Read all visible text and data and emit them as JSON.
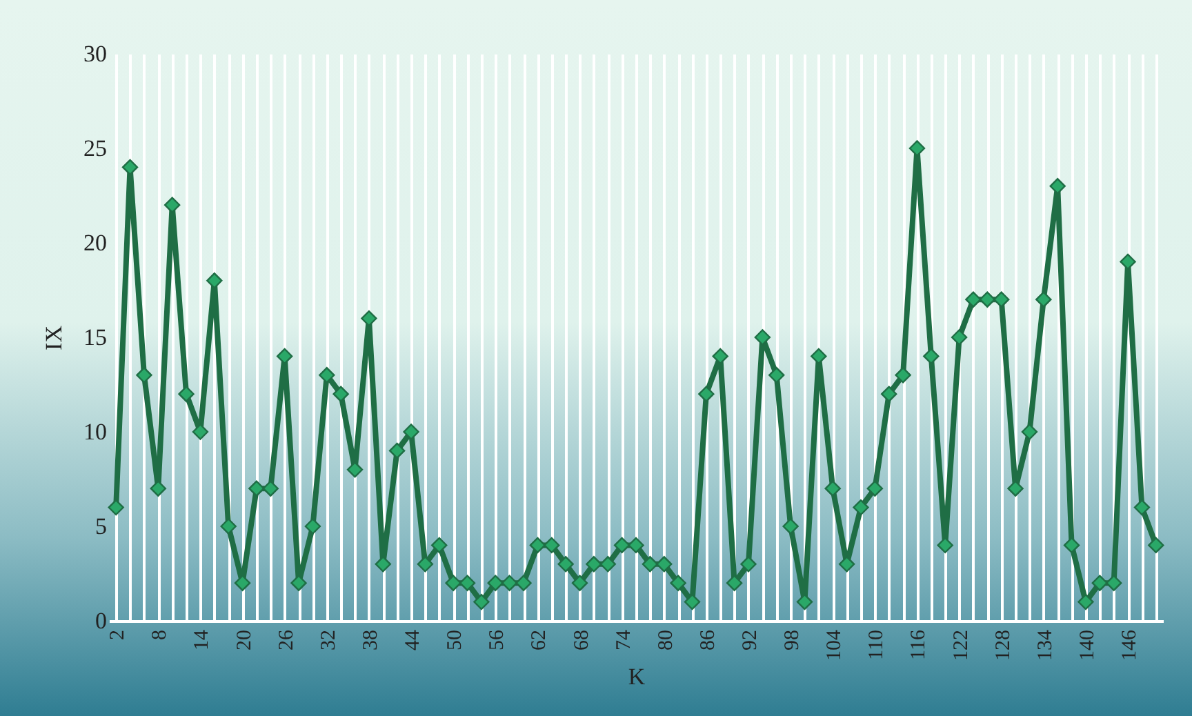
{
  "chart_data": {
    "type": "line",
    "xlabel": "K",
    "ylabel": "IX",
    "categories": [
      "2",
      null,
      null,
      "8",
      null,
      null,
      "14",
      null,
      null,
      "20",
      null,
      null,
      "26",
      null,
      null,
      "32",
      null,
      null,
      "38",
      null,
      null,
      "44",
      null,
      null,
      "50",
      null,
      null,
      "56",
      null,
      null,
      "62",
      null,
      null,
      "68",
      null,
      null,
      "74",
      null,
      null,
      "80",
      null,
      null,
      "86",
      null,
      null,
      "92",
      null,
      null,
      "98",
      null,
      null,
      "104",
      null,
      null,
      "110",
      null,
      null,
      "116",
      null,
      null,
      "122",
      null,
      null,
      "128",
      null,
      null,
      "134",
      null,
      null,
      "140",
      null,
      null,
      "146",
      null,
      null
    ],
    "series": [
      {
        "color": "#1f6e45",
        "values": [
          6,
          24,
          13,
          7,
          22,
          12,
          10,
          18,
          5,
          2,
          7,
          7,
          14,
          2,
          5,
          13,
          12,
          8,
          16,
          3,
          9,
          10,
          3,
          4,
          2,
          2,
          1,
          2,
          2,
          2,
          4,
          4,
          3,
          2,
          3,
          3,
          4,
          4,
          3,
          3,
          2,
          1,
          12,
          14,
          2,
          3,
          15,
          13,
          5,
          1,
          14,
          7,
          3,
          6,
          7,
          12,
          13,
          25,
          14,
          4,
          15,
          17,
          17,
          17,
          7,
          10,
          17,
          23,
          4,
          1,
          2,
          2,
          19,
          6,
          4
        ]
      }
    ],
    "ylim": [
      0,
      30
    ],
    "yticks": [
      0,
      5,
      10,
      15,
      20,
      25,
      30
    ],
    "grid": "x",
    "marker": "diamond",
    "line_style": "solid"
  }
}
